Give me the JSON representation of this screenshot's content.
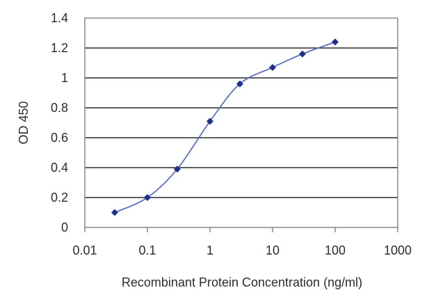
{
  "chart_data": {
    "type": "scatter",
    "title": "",
    "xlabel": "Recombinant Protein Concentration (ng/ml)",
    "ylabel": "OD 450",
    "x_scale": "log",
    "xlim": [
      0.01,
      1000
    ],
    "ylim": [
      0,
      1.4
    ],
    "x_ticks": [
      "0.01",
      "0.1",
      "1",
      "10",
      "100",
      "1000"
    ],
    "y_ticks": [
      "0",
      "0.2",
      "0.4",
      "0.6",
      "0.8",
      "1",
      "1.2",
      "1.4"
    ],
    "grid": "horizontal",
    "series": [
      {
        "x": [
          0.03,
          0.1,
          0.3,
          1,
          3,
          10,
          30,
          100
        ],
        "y": [
          0.1,
          0.2,
          0.39,
          0.71,
          0.96,
          1.07,
          1.16,
          1.24
        ]
      }
    ],
    "colors": {
      "series": "#1f2f8c",
      "curve": "#5a6fc4",
      "grid": "#2a2a2a",
      "frame": "#888888",
      "text": "#2b2b2b"
    }
  }
}
